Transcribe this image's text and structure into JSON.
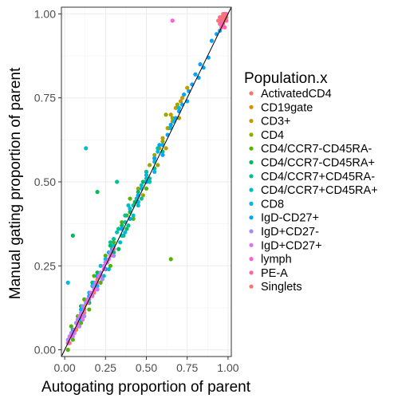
{
  "chart_data": {
    "type": "scatter",
    "xlabel": "Autogating proportion of parent",
    "ylabel": "Manual gating proportion of parent",
    "xlim": [
      -0.02,
      1.02
    ],
    "ylim": [
      -0.02,
      1.02
    ],
    "x_ticks": [
      0.0,
      0.25,
      0.5,
      0.75,
      1.0
    ],
    "y_ticks": [
      0.0,
      0.25,
      0.5,
      0.75,
      1.0
    ],
    "x_tick_labels": [
      "0.00",
      "0.25",
      "0.50",
      "0.75",
      "1.00"
    ],
    "y_tick_labels": [
      "0.00",
      "0.25",
      "0.50",
      "0.75",
      "1.00"
    ],
    "grid": true,
    "reference_line": {
      "slope": 1,
      "intercept": 0
    },
    "legend": {
      "title": "Population.x",
      "placement": "right",
      "entries": [
        {
          "name": "ActivatedCD4",
          "color": "#F8766D"
        },
        {
          "name": "CD19gate",
          "color": "#E38900"
        },
        {
          "name": "CD3+",
          "color": "#C49A00"
        },
        {
          "name": "CD4",
          "color": "#99A800"
        },
        {
          "name": "CD4/CCR7-CD45RA-",
          "color": "#53B400"
        },
        {
          "name": "CD4/CCR7-CD45RA+",
          "color": "#00BC56"
        },
        {
          "name": "CD4/CCR7+CD45RA-",
          "color": "#00C094"
        },
        {
          "name": "CD4/CCR7+CD45RA+",
          "color": "#00BFC4"
        },
        {
          "name": "CD8",
          "color": "#00B6EB"
        },
        {
          "name": "IgD-CD27+",
          "color": "#06A4FF"
        },
        {
          "name": "IgD+CD27-",
          "color": "#A58AFF"
        },
        {
          "name": "IgD+CD27+",
          "color": "#DF70F8"
        },
        {
          "name": "lymph",
          "color": "#FB61D7"
        },
        {
          "name": "PE-A",
          "color": "#FF66A8"
        },
        {
          "name": "Singlets",
          "color": "#F8766D"
        }
      ]
    },
    "series": [
      {
        "name": "ActivatedCD4",
        "color": "#F8766D",
        "points": [
          [
            0.05,
            0.06
          ],
          [
            0.08,
            0.07
          ],
          [
            0.12,
            0.11
          ],
          [
            0.15,
            0.16
          ],
          [
            0.2,
            0.21
          ],
          [
            0.03,
            0.02
          ],
          [
            0.1,
            0.12
          ],
          [
            0.18,
            0.17
          ]
        ]
      },
      {
        "name": "CD19gate",
        "color": "#E38900",
        "points": [
          [
            0.05,
            0.05
          ],
          [
            0.08,
            0.09
          ],
          [
            0.12,
            0.13
          ],
          [
            0.1,
            0.1
          ],
          [
            0.15,
            0.14
          ],
          [
            0.07,
            0.06
          ]
        ]
      },
      {
        "name": "CD3+",
        "color": "#C49A00",
        "points": [
          [
            0.55,
            0.57
          ],
          [
            0.6,
            0.63
          ],
          [
            0.62,
            0.6
          ],
          [
            0.65,
            0.7
          ],
          [
            0.68,
            0.72
          ],
          [
            0.7,
            0.69
          ],
          [
            0.72,
            0.75
          ],
          [
            0.75,
            0.78
          ],
          [
            0.66,
            0.68
          ],
          [
            0.58,
            0.6
          ],
          [
            0.63,
            0.66
          ],
          [
            0.71,
            0.74
          ]
        ]
      },
      {
        "name": "CD4",
        "color": "#99A800",
        "points": [
          [
            0.4,
            0.42
          ],
          [
            0.45,
            0.48
          ],
          [
            0.5,
            0.5
          ],
          [
            0.55,
            0.58
          ],
          [
            0.6,
            0.62
          ],
          [
            0.62,
            0.7
          ],
          [
            0.66,
            0.69
          ],
          [
            0.48,
            0.46
          ],
          [
            0.52,
            0.55
          ],
          [
            0.57,
            0.55
          ],
          [
            0.64,
            0.66
          ],
          [
            0.69,
            0.73
          ]
        ]
      },
      {
        "name": "CD4/CCR7-CD45RA-",
        "color": "#53B400",
        "points": [
          [
            0.02,
            0.0
          ],
          [
            0.05,
            0.03
          ],
          [
            0.1,
            0.08
          ],
          [
            0.15,
            0.12
          ],
          [
            0.2,
            0.18
          ],
          [
            0.25,
            0.28
          ],
          [
            0.3,
            0.32
          ],
          [
            0.35,
            0.38
          ],
          [
            0.4,
            0.45
          ],
          [
            0.45,
            0.44
          ],
          [
            0.5,
            0.48
          ],
          [
            0.08,
            0.1
          ],
          [
            0.18,
            0.22
          ],
          [
            0.22,
            0.2
          ],
          [
            0.28,
            0.25
          ],
          [
            0.33,
            0.36
          ],
          [
            0.38,
            0.4
          ],
          [
            0.42,
            0.39
          ],
          [
            0.65,
            0.27
          ],
          [
            0.12,
            0.15
          ],
          [
            0.04,
            0.07
          ]
        ]
      },
      {
        "name": "CD4/CCR7-CD45RA+",
        "color": "#00BC56",
        "points": [
          [
            0.1,
            0.13
          ],
          [
            0.15,
            0.14
          ],
          [
            0.2,
            0.23
          ],
          [
            0.25,
            0.24
          ],
          [
            0.3,
            0.29
          ],
          [
            0.35,
            0.37
          ],
          [
            0.4,
            0.41
          ],
          [
            0.45,
            0.47
          ],
          [
            0.2,
            0.47
          ],
          [
            0.28,
            0.31
          ],
          [
            0.33,
            0.3
          ],
          [
            0.38,
            0.36
          ],
          [
            0.43,
            0.44
          ],
          [
            0.48,
            0.5
          ],
          [
            0.17,
            0.2
          ],
          [
            0.23,
            0.21
          ],
          [
            0.36,
            0.34
          ],
          [
            0.05,
            0.34
          ]
        ]
      },
      {
        "name": "CD4/CCR7+CD45RA-",
        "color": "#00C094",
        "points": [
          [
            0.3,
            0.33
          ],
          [
            0.35,
            0.34
          ],
          [
            0.4,
            0.39
          ],
          [
            0.45,
            0.46
          ],
          [
            0.5,
            0.53
          ],
          [
            0.55,
            0.54
          ],
          [
            0.6,
            0.59
          ],
          [
            0.32,
            0.5
          ],
          [
            0.28,
            0.32
          ],
          [
            0.37,
            0.4
          ],
          [
            0.42,
            0.43
          ],
          [
            0.47,
            0.45
          ],
          [
            0.52,
            0.51
          ],
          [
            0.57,
            0.6
          ],
          [
            0.33,
            0.36
          ],
          [
            0.39,
            0.37
          ]
        ]
      },
      {
        "name": "CD4/CCR7+CD45RA+",
        "color": "#00BFC4",
        "points": [
          [
            0.2,
            0.22
          ],
          [
            0.25,
            0.26
          ],
          [
            0.3,
            0.31
          ],
          [
            0.35,
            0.34
          ],
          [
            0.4,
            0.42
          ],
          [
            0.45,
            0.43
          ],
          [
            0.5,
            0.51
          ],
          [
            0.55,
            0.56
          ],
          [
            0.13,
            0.6
          ],
          [
            0.22,
            0.25
          ],
          [
            0.27,
            0.24
          ],
          [
            0.32,
            0.35
          ],
          [
            0.37,
            0.38
          ],
          [
            0.42,
            0.4
          ],
          [
            0.47,
            0.49
          ],
          [
            0.52,
            0.5
          ],
          [
            0.18,
            0.2
          ],
          [
            0.24,
            0.22
          ],
          [
            0.29,
            0.3
          ],
          [
            0.34,
            0.32
          ],
          [
            0.39,
            0.43
          ],
          [
            0.44,
            0.45
          ]
        ]
      },
      {
        "name": "CD8",
        "color": "#00B6EB",
        "points": [
          [
            0.1,
            0.12
          ],
          [
            0.15,
            0.17
          ],
          [
            0.2,
            0.19
          ],
          [
            0.25,
            0.27
          ],
          [
            0.3,
            0.28
          ],
          [
            0.35,
            0.36
          ],
          [
            0.4,
            0.42
          ],
          [
            0.45,
            0.44
          ],
          [
            0.5,
            0.52
          ],
          [
            0.55,
            0.53
          ],
          [
            0.6,
            0.61
          ],
          [
            0.65,
            0.66
          ],
          [
            0.7,
            0.72
          ],
          [
            0.17,
            0.19
          ],
          [
            0.27,
            0.29
          ],
          [
            0.37,
            0.35
          ],
          [
            0.47,
            0.48
          ],
          [
            0.57,
            0.59
          ],
          [
            0.67,
            0.68
          ],
          [
            0.02,
            0.2
          ]
        ]
      },
      {
        "name": "IgD-CD27+",
        "color": "#06A4FF",
        "points": [
          [
            0.05,
            0.06
          ],
          [
            0.1,
            0.09
          ],
          [
            0.15,
            0.16
          ],
          [
            0.2,
            0.22
          ],
          [
            0.25,
            0.24
          ],
          [
            0.3,
            0.3
          ],
          [
            0.35,
            0.36
          ],
          [
            0.4,
            0.39
          ],
          [
            0.45,
            0.46
          ],
          [
            0.5,
            0.5
          ],
          [
            0.55,
            0.57
          ],
          [
            0.6,
            0.58
          ],
          [
            0.65,
            0.67
          ],
          [
            0.7,
            0.71
          ],
          [
            0.75,
            0.74
          ],
          [
            0.8,
            0.82
          ],
          [
            0.85,
            0.84
          ],
          [
            0.9,
            0.92
          ],
          [
            0.95,
            0.95
          ],
          [
            0.98,
            0.99
          ],
          [
            0.58,
            0.61
          ],
          [
            0.63,
            0.64
          ],
          [
            0.68,
            0.69
          ],
          [
            0.73,
            0.76
          ],
          [
            0.78,
            0.79
          ],
          [
            0.83,
            0.85
          ],
          [
            0.88,
            0.87
          ],
          [
            0.93,
            0.94
          ],
          [
            0.72,
            0.73
          ],
          [
            0.76,
            0.77
          ],
          [
            0.82,
            0.81
          ]
        ]
      },
      {
        "name": "IgD+CD27-",
        "color": "#A58AFF",
        "points": [
          [
            0.02,
            0.03
          ],
          [
            0.05,
            0.04
          ],
          [
            0.08,
            0.09
          ],
          [
            0.1,
            0.11
          ],
          [
            0.12,
            0.1
          ],
          [
            0.15,
            0.15
          ],
          [
            0.18,
            0.19
          ],
          [
            0.2,
            0.18
          ],
          [
            0.22,
            0.23
          ],
          [
            0.25,
            0.26
          ],
          [
            0.07,
            0.08
          ],
          [
            0.13,
            0.14
          ],
          [
            0.17,
            0.16
          ],
          [
            0.23,
            0.21
          ],
          [
            0.28,
            0.29
          ],
          [
            0.3,
            0.28
          ],
          [
            0.04,
            0.05
          ],
          [
            0.09,
            0.07
          ],
          [
            0.11,
            0.13
          ],
          [
            0.19,
            0.2
          ]
        ]
      },
      {
        "name": "IgD+CD27+",
        "color": "#DF70F8",
        "points": [
          [
            0.03,
            0.04
          ],
          [
            0.06,
            0.05
          ],
          [
            0.09,
            0.1
          ],
          [
            0.11,
            0.09
          ],
          [
            0.14,
            0.15
          ],
          [
            0.16,
            0.17
          ],
          [
            0.19,
            0.18
          ],
          [
            0.21,
            0.22
          ],
          [
            0.24,
            0.25
          ],
          [
            0.27,
            0.27
          ],
          [
            0.08,
            0.07
          ],
          [
            0.12,
            0.12
          ]
        ]
      },
      {
        "name": "lymph",
        "color": "#FB61D7",
        "points": [
          [
            0.02,
            0.02
          ],
          [
            0.04,
            0.04
          ],
          [
            0.06,
            0.06
          ],
          [
            0.08,
            0.08
          ],
          [
            0.1,
            0.1
          ],
          [
            0.12,
            0.12
          ],
          [
            0.14,
            0.14
          ],
          [
            0.16,
            0.16
          ],
          [
            0.18,
            0.18
          ],
          [
            0.2,
            0.2
          ],
          [
            0.22,
            0.22
          ],
          [
            0.24,
            0.24
          ],
          [
            0.26,
            0.26
          ],
          [
            0.28,
            0.28
          ],
          [
            0.3,
            0.3
          ],
          [
            0.66,
            0.98
          ]
        ]
      },
      {
        "name": "PE-A",
        "color": "#FF66A8",
        "points": [
          [
            0.95,
            0.97
          ],
          [
            0.96,
            0.98
          ],
          [
            0.97,
            0.99
          ],
          [
            0.98,
            1.0
          ],
          [
            0.99,
            0.98
          ],
          [
            0.95,
            0.99
          ],
          [
            0.97,
            0.97
          ],
          [
            0.98,
            0.96
          ],
          [
            0.99,
            1.0
          ],
          [
            0.96,
            0.96
          ]
        ]
      },
      {
        "name": "Singlets",
        "color": "#F8766D",
        "points": [
          [
            0.94,
            0.98
          ],
          [
            0.96,
            0.99
          ],
          [
            0.98,
            0.98
          ],
          [
            0.99,
            0.99
          ],
          [
            0.97,
            1.0
          ]
        ]
      }
    ]
  }
}
